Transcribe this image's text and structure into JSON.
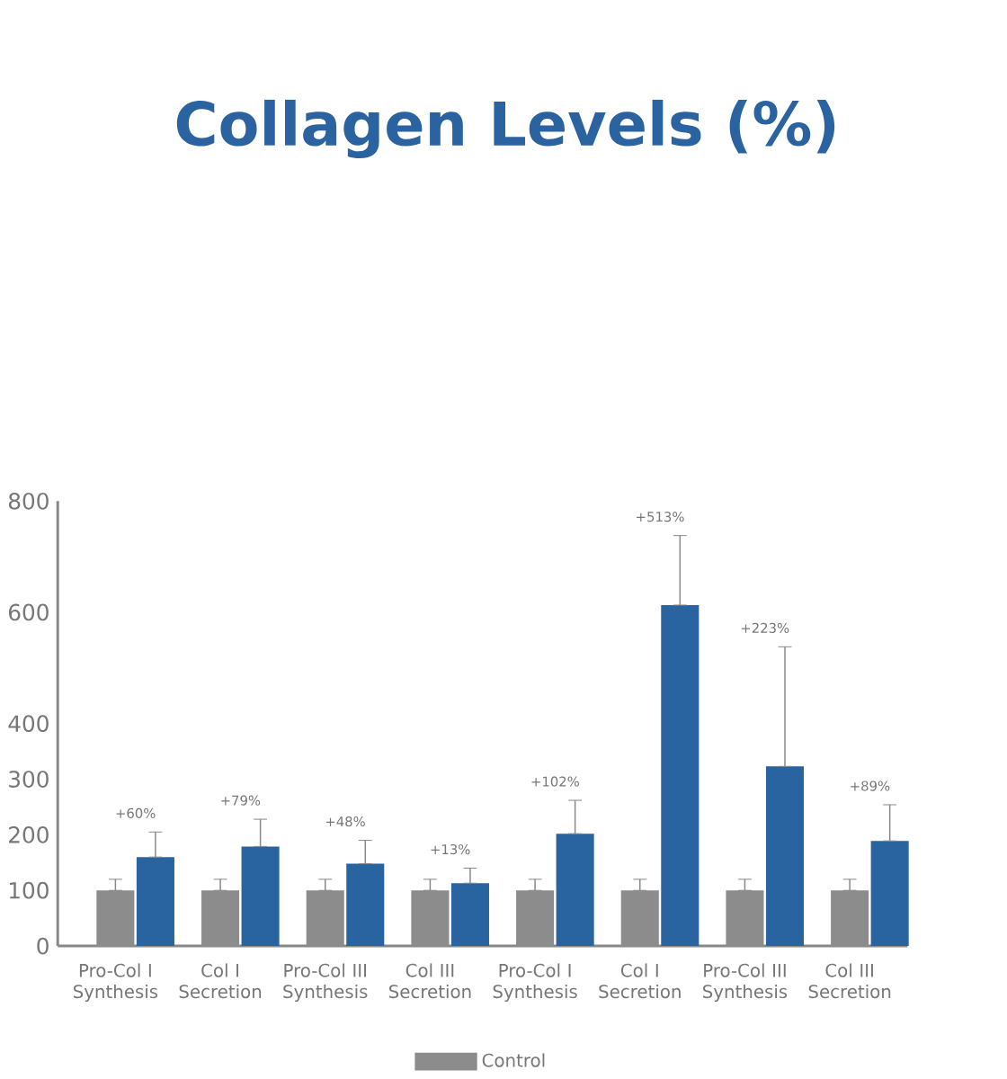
{
  "chart_data": {
    "type": "bar",
    "title": "Collagen Levels (%)",
    "categories": [
      "Pro-Col I Synthesis",
      "Col I Secretion",
      "Pro-Col III Synthesis",
      "Col III Secretion",
      "Pro-Col I Synthesis",
      "Col I Secretion",
      "Pro-Col III Synthesis",
      "Col III Secretion"
    ],
    "series": [
      {
        "name": "Control",
        "color": "#8c8c8c",
        "values": [
          100,
          100,
          100,
          100,
          100,
          100,
          100,
          100
        ],
        "errors": [
          [
            100,
            120
          ],
          [
            100,
            120
          ],
          [
            100,
            120
          ],
          [
            100,
            120
          ],
          [
            100,
            120
          ],
          [
            100,
            120
          ],
          [
            100,
            120
          ],
          [
            100,
            120
          ]
        ]
      },
      {
        "color": "#2a64a0",
        "values": [
          160,
          179,
          148,
          113,
          202,
          613,
          323,
          189
        ],
        "errors": [
          [
            160,
            205
          ],
          [
            179,
            228
          ],
          [
            148,
            190
          ],
          [
            113,
            140
          ],
          [
            202,
            262
          ],
          [
            613,
            738
          ],
          [
            323,
            538
          ],
          [
            189,
            254
          ]
        ]
      }
    ],
    "ylim": [
      0,
      800
    ],
    "yticks": [
      0,
      100,
      200,
      300,
      400,
      600,
      800
    ],
    "annotations": [
      "+60%",
      "+79%",
      "+48%",
      "+13%",
      "+102%",
      "+513%",
      "+223%",
      "+89%"
    ],
    "grid": false,
    "legend": "bottom"
  }
}
